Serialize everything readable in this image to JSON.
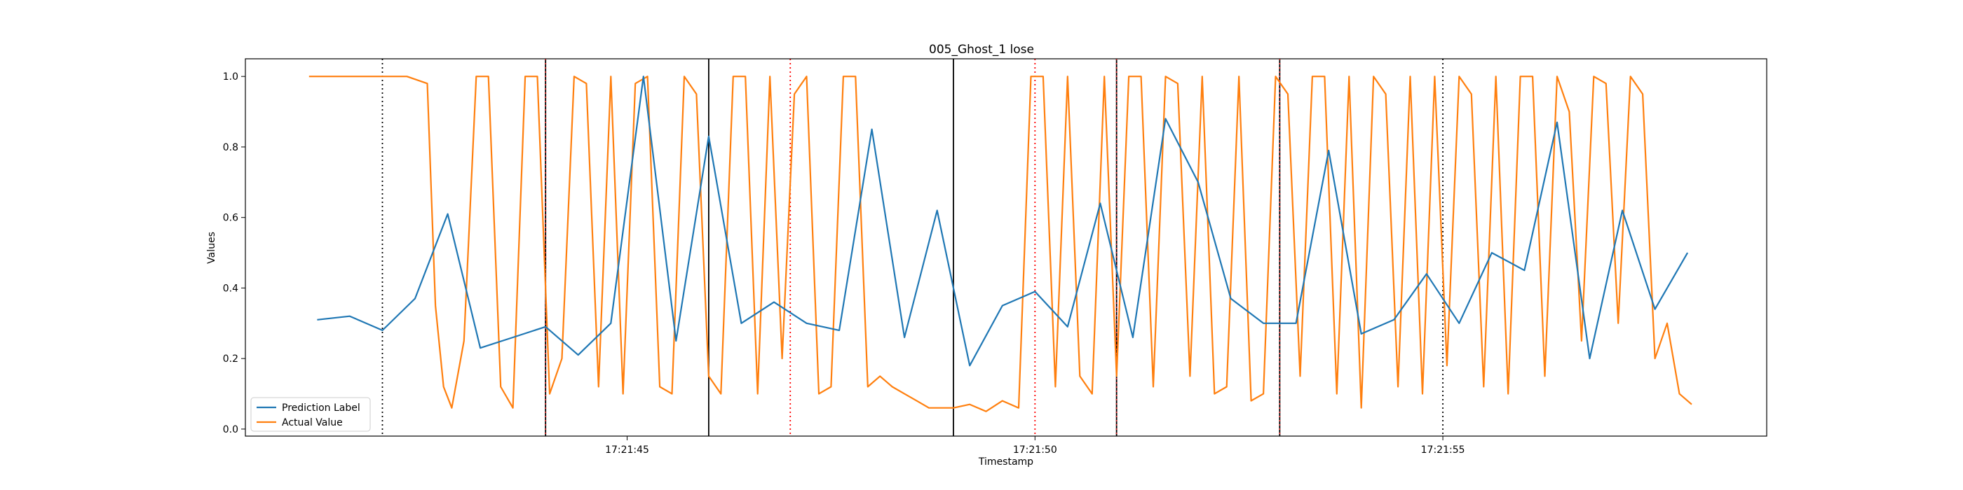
{
  "chart_data": {
    "type": "line",
    "title": "005_Ghost_1 lose",
    "xlabel": "Timestamp",
    "ylabel": "Values",
    "xlim": [
      "17:21:40.32",
      "17:21:58.97"
    ],
    "ylim": [
      -0.02,
      1.05
    ],
    "x_ticks": [
      "17:21:45",
      "17:21:50",
      "17:21:55"
    ],
    "y_ticks": [
      "0.0",
      "0.2",
      "0.4",
      "0.6",
      "0.8",
      "1.0"
    ],
    "grid": false,
    "legend_position": "lower-left",
    "series": [
      {
        "name": "Prediction Label",
        "color": "#1f77b4",
        "x": [
          "17:21:41.2",
          "17:21:41.6",
          "17:21:42.0",
          "17:21:42.4",
          "17:21:42.8",
          "17:21:43.2",
          "17:21:43.6",
          "17:21:44.0",
          "17:21:44.4",
          "17:21:44.8",
          "17:21:45.2",
          "17:21:45.6",
          "17:21:46.0",
          "17:21:46.4",
          "17:21:46.8",
          "17:21:47.2",
          "17:21:47.6",
          "17:21:48.0",
          "17:21:48.4",
          "17:21:48.8",
          "17:21:49.2",
          "17:21:49.6",
          "17:21:50.0",
          "17:21:50.4",
          "17:21:50.8",
          "17:21:51.2",
          "17:21:51.6",
          "17:21:52.0",
          "17:21:52.4",
          "17:21:52.8",
          "17:21:53.2",
          "17:21:53.6",
          "17:21:54.0",
          "17:21:54.4",
          "17:21:54.8",
          "17:21:55.2",
          "17:21:55.6",
          "17:21:56.0",
          "17:21:56.4",
          "17:21:56.8",
          "17:21:57.2",
          "17:21:57.6",
          "17:21:58.0"
        ],
        "values": [
          0.31,
          0.32,
          0.28,
          0.37,
          0.61,
          0.23,
          0.26,
          0.29,
          0.21,
          0.3,
          1.0,
          0.25,
          0.83,
          0.3,
          0.36,
          0.3,
          0.28,
          0.85,
          0.26,
          0.62,
          0.18,
          0.35,
          0.39,
          0.29,
          0.64,
          0.26,
          0.88,
          0.7,
          0.37,
          0.3,
          0.3,
          0.79,
          0.27,
          0.31,
          0.44,
          0.3,
          0.5,
          0.45,
          0.87,
          0.2,
          0.62,
          0.34,
          0.5
        ]
      },
      {
        "name": "Actual Value",
        "color": "#ff7f0e",
        "x": [
          "17:21:41.1",
          "17:21:42.3",
          "17:21:42.55",
          "17:21:42.65",
          "17:21:42.75",
          "17:21:42.85",
          "17:21:43.0",
          "17:21:43.15",
          "17:21:43.3",
          "17:21:43.45",
          "17:21:43.6",
          "17:21:43.75",
          "17:21:43.9",
          "17:21:44.05",
          "17:21:44.2",
          "17:21:44.35",
          "17:21:44.5",
          "17:21:44.65",
          "17:21:44.8",
          "17:21:44.95",
          "17:21:45.1",
          "17:21:45.25",
          "17:21:45.4",
          "17:21:45.55",
          "17:21:45.7",
          "17:21:45.85",
          "17:21:46.0",
          "17:21:46.15",
          "17:21:46.3",
          "17:21:46.45",
          "17:21:46.6",
          "17:21:46.75",
          "17:21:46.9",
          "17:21:47.05",
          "17:21:47.2",
          "17:21:47.35",
          "17:21:47.5",
          "17:21:47.65",
          "17:21:47.8",
          "17:21:47.95",
          "17:21:48.1",
          "17:21:48.25",
          "17:21:48.4",
          "17:21:48.55",
          "17:21:48.7",
          "17:21:48.85",
          "17:21:49.0",
          "17:21:49.2",
          "17:21:49.4",
          "17:21:49.6",
          "17:21:49.8",
          "17:21:49.95",
          "17:21:50.1",
          "17:21:50.25",
          "17:21:50.4",
          "17:21:50.55",
          "17:21:50.7",
          "17:21:50.85",
          "17:21:51.0",
          "17:21:51.15",
          "17:21:51.3",
          "17:21:51.45",
          "17:21:51.6",
          "17:21:51.75",
          "17:21:51.9",
          "17:21:52.05",
          "17:21:52.2",
          "17:21:52.35",
          "17:21:52.5",
          "17:21:52.65",
          "17:21:52.8",
          "17:21:52.95",
          "17:21:53.1",
          "17:21:53.25",
          "17:21:53.4",
          "17:21:53.55",
          "17:21:53.7",
          "17:21:53.85",
          "17:21:54.0",
          "17:21:54.15",
          "17:21:54.3",
          "17:21:54.45",
          "17:21:54.6",
          "17:21:54.75",
          "17:21:54.9",
          "17:21:55.05",
          "17:21:55.2",
          "17:21:55.35",
          "17:21:55.5",
          "17:21:55.65",
          "17:21:55.8",
          "17:21:55.95",
          "17:21:56.1",
          "17:21:56.25",
          "17:21:56.4",
          "17:21:56.55",
          "17:21:56.7",
          "17:21:56.85",
          "17:21:57.0",
          "17:21:57.15",
          "17:21:57.3",
          "17:21:57.45",
          "17:21:57.6",
          "17:21:57.75",
          "17:21:57.9",
          "17:21:58.05"
        ],
        "values": [
          1.0,
          1.0,
          0.98,
          0.35,
          0.12,
          0.06,
          0.25,
          1.0,
          1.0,
          0.12,
          0.06,
          1.0,
          1.0,
          0.1,
          0.2,
          1.0,
          0.98,
          0.12,
          1.0,
          0.1,
          0.98,
          1.0,
          0.12,
          0.1,
          1.0,
          0.95,
          0.15,
          0.1,
          1.0,
          1.0,
          0.1,
          1.0,
          0.2,
          0.95,
          1.0,
          0.1,
          0.12,
          1.0,
          1.0,
          0.12,
          0.15,
          0.12,
          0.1,
          0.08,
          0.06,
          0.06,
          0.06,
          0.07,
          0.05,
          0.08,
          0.06,
          1.0,
          1.0,
          0.12,
          1.0,
          0.15,
          0.1,
          1.0,
          0.15,
          1.0,
          1.0,
          0.12,
          1.0,
          0.98,
          0.15,
          1.0,
          0.1,
          0.12,
          1.0,
          0.08,
          0.1,
          1.0,
          0.95,
          0.15,
          1.0,
          1.0,
          0.1,
          1.0,
          0.06,
          1.0,
          0.95,
          0.12,
          1.0,
          0.1,
          1.0,
          0.18,
          1.0,
          0.95,
          0.12,
          1.0,
          0.1,
          1.0,
          1.0,
          0.15,
          1.0,
          0.9,
          0.25,
          1.0,
          0.98,
          0.3,
          1.0,
          0.95,
          0.2,
          0.3,
          0.1,
          0.07
        ]
      }
    ],
    "vertical_lines": [
      {
        "x": "17:21:42.0",
        "color": "#000000",
        "style": "dotted"
      },
      {
        "x": "17:21:44.0",
        "color": "#000000",
        "style": "solid"
      },
      {
        "x": "17:21:44.0",
        "color": "#d62728",
        "style": "dotted"
      },
      {
        "x": "17:21:46.0",
        "color": "#000000",
        "style": "solid"
      },
      {
        "x": "17:21:47.0",
        "color": "#ff0000",
        "style": "dotted"
      },
      {
        "x": "17:21:49.0",
        "color": "#000000",
        "style": "solid"
      },
      {
        "x": "17:21:50.0",
        "color": "#ff0000",
        "style": "dotted"
      },
      {
        "x": "17:21:51.0",
        "color": "#000000",
        "style": "solid"
      },
      {
        "x": "17:21:51.0",
        "color": "#d62728",
        "style": "dotted"
      },
      {
        "x": "17:21:53.0",
        "color": "#000000",
        "style": "solid"
      },
      {
        "x": "17:21:53.0",
        "color": "#d62728",
        "style": "dotted"
      },
      {
        "x": "17:21:55.0",
        "color": "#000000",
        "style": "dotted"
      }
    ]
  }
}
